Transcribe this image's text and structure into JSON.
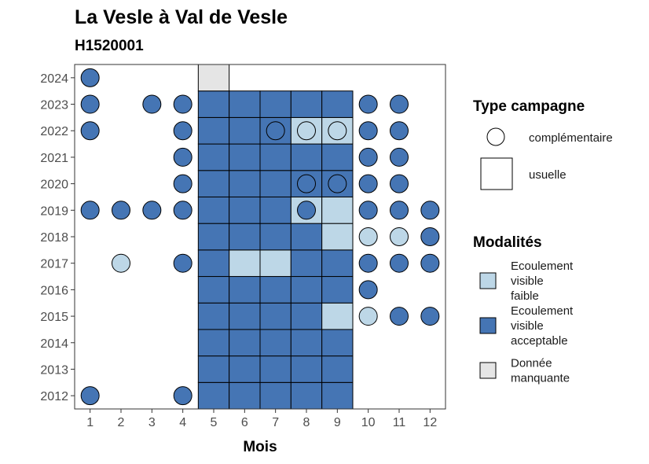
{
  "chart_data": {
    "type": "heatmap",
    "title": "La Vesle à Val de Vesle",
    "subtitle": "H1520001",
    "xlabel": "Mois",
    "ylabel": "",
    "x_ticks": [
      "1",
      "2",
      "3",
      "4",
      "5",
      "6",
      "7",
      "8",
      "9",
      "10",
      "11",
      "12"
    ],
    "y_ticks": [
      "2012",
      "2013",
      "2014",
      "2015",
      "2016",
      "2017",
      "2018",
      "2019",
      "2020",
      "2021",
      "2022",
      "2023",
      "2024"
    ],
    "xlim": [
      0.5,
      12.5
    ],
    "ylim": [
      2011.5,
      2024.5
    ],
    "grid": false,
    "legend_position": "right",
    "colors": {
      "faible": "#bdd7e7",
      "acceptable": "#4575b4",
      "manquante": "#e5e5e5"
    },
    "legend_campagne": {
      "title": "Type campagne",
      "items": [
        {
          "shape": "circle",
          "label": "complémentaire"
        },
        {
          "shape": "square",
          "label": "usuelle"
        }
      ]
    },
    "legend_modalites": {
      "title": "Modalités",
      "items": [
        {
          "key": "faible",
          "lines": [
            "Ecoulement",
            "visible",
            "faible"
          ]
        },
        {
          "key": "acceptable",
          "lines": [
            "Ecoulement",
            "visible",
            "acceptable"
          ]
        },
        {
          "key": "manquante",
          "lines": [
            "Donnée",
            "manquante"
          ]
        }
      ]
    },
    "squares": [
      {
        "year": 2012,
        "month": 5,
        "m": "acceptable"
      },
      {
        "year": 2012,
        "month": 6,
        "m": "acceptable"
      },
      {
        "year": 2012,
        "month": 7,
        "m": "acceptable"
      },
      {
        "year": 2012,
        "month": 8,
        "m": "acceptable"
      },
      {
        "year": 2012,
        "month": 9,
        "m": "acceptable"
      },
      {
        "year": 2013,
        "month": 5,
        "m": "acceptable"
      },
      {
        "year": 2013,
        "month": 6,
        "m": "acceptable"
      },
      {
        "year": 2013,
        "month": 7,
        "m": "acceptable"
      },
      {
        "year": 2013,
        "month": 8,
        "m": "acceptable"
      },
      {
        "year": 2013,
        "month": 9,
        "m": "acceptable"
      },
      {
        "year": 2014,
        "month": 5,
        "m": "acceptable"
      },
      {
        "year": 2014,
        "month": 6,
        "m": "acceptable"
      },
      {
        "year": 2014,
        "month": 7,
        "m": "acceptable"
      },
      {
        "year": 2014,
        "month": 8,
        "m": "acceptable"
      },
      {
        "year": 2014,
        "month": 9,
        "m": "acceptable"
      },
      {
        "year": 2015,
        "month": 5,
        "m": "acceptable"
      },
      {
        "year": 2015,
        "month": 6,
        "m": "acceptable"
      },
      {
        "year": 2015,
        "month": 7,
        "m": "acceptable"
      },
      {
        "year": 2015,
        "month": 8,
        "m": "acceptable"
      },
      {
        "year": 2015,
        "month": 9,
        "m": "faible"
      },
      {
        "year": 2016,
        "month": 5,
        "m": "acceptable"
      },
      {
        "year": 2016,
        "month": 6,
        "m": "acceptable"
      },
      {
        "year": 2016,
        "month": 7,
        "m": "acceptable"
      },
      {
        "year": 2016,
        "month": 8,
        "m": "acceptable"
      },
      {
        "year": 2016,
        "month": 9,
        "m": "acceptable"
      },
      {
        "year": 2017,
        "month": 5,
        "m": "acceptable"
      },
      {
        "year": 2017,
        "month": 6,
        "m": "faible"
      },
      {
        "year": 2017,
        "month": 7,
        "m": "faible"
      },
      {
        "year": 2017,
        "month": 8,
        "m": "acceptable"
      },
      {
        "year": 2017,
        "month": 9,
        "m": "acceptable"
      },
      {
        "year": 2018,
        "month": 5,
        "m": "acceptable"
      },
      {
        "year": 2018,
        "month": 6,
        "m": "acceptable"
      },
      {
        "year": 2018,
        "month": 7,
        "m": "acceptable"
      },
      {
        "year": 2018,
        "month": 8,
        "m": "acceptable"
      },
      {
        "year": 2018,
        "month": 9,
        "m": "faible"
      },
      {
        "year": 2019,
        "month": 5,
        "m": "acceptable"
      },
      {
        "year": 2019,
        "month": 6,
        "m": "acceptable"
      },
      {
        "year": 2019,
        "month": 7,
        "m": "acceptable"
      },
      {
        "year": 2019,
        "month": 8,
        "m": "faible"
      },
      {
        "year": 2019,
        "month": 9,
        "m": "faible"
      },
      {
        "year": 2020,
        "month": 5,
        "m": "acceptable"
      },
      {
        "year": 2020,
        "month": 6,
        "m": "acceptable"
      },
      {
        "year": 2020,
        "month": 7,
        "m": "acceptable"
      },
      {
        "year": 2020,
        "month": 8,
        "m": "acceptable"
      },
      {
        "year": 2020,
        "month": 9,
        "m": "acceptable"
      },
      {
        "year": 2021,
        "month": 5,
        "m": "acceptable"
      },
      {
        "year": 2021,
        "month": 6,
        "m": "acceptable"
      },
      {
        "year": 2021,
        "month": 7,
        "m": "acceptable"
      },
      {
        "year": 2021,
        "month": 8,
        "m": "acceptable"
      },
      {
        "year": 2021,
        "month": 9,
        "m": "acceptable"
      },
      {
        "year": 2022,
        "month": 5,
        "m": "acceptable"
      },
      {
        "year": 2022,
        "month": 6,
        "m": "acceptable"
      },
      {
        "year": 2022,
        "month": 7,
        "m": "acceptable"
      },
      {
        "year": 2022,
        "month": 8,
        "m": "faible"
      },
      {
        "year": 2022,
        "month": 9,
        "m": "faible"
      },
      {
        "year": 2023,
        "month": 5,
        "m": "acceptable"
      },
      {
        "year": 2023,
        "month": 6,
        "m": "acceptable"
      },
      {
        "year": 2023,
        "month": 7,
        "m": "acceptable"
      },
      {
        "year": 2023,
        "month": 8,
        "m": "acceptable"
      },
      {
        "year": 2023,
        "month": 9,
        "m": "acceptable"
      },
      {
        "year": 2024,
        "month": 5,
        "m": "manquante"
      }
    ],
    "circles": [
      {
        "year": 2012,
        "month": 1,
        "m": "acceptable"
      },
      {
        "year": 2012,
        "month": 4,
        "m": "acceptable"
      },
      {
        "year": 2015,
        "month": 10,
        "m": "faible"
      },
      {
        "year": 2015,
        "month": 11,
        "m": "acceptable"
      },
      {
        "year": 2015,
        "month": 12,
        "m": "acceptable"
      },
      {
        "year": 2016,
        "month": 10,
        "m": "acceptable"
      },
      {
        "year": 2017,
        "month": 2,
        "m": "faible"
      },
      {
        "year": 2017,
        "month": 4,
        "m": "acceptable"
      },
      {
        "year": 2017,
        "month": 10,
        "m": "acceptable"
      },
      {
        "year": 2017,
        "month": 11,
        "m": "acceptable"
      },
      {
        "year": 2017,
        "month": 12,
        "m": "acceptable"
      },
      {
        "year": 2018,
        "month": 10,
        "m": "faible"
      },
      {
        "year": 2018,
        "month": 11,
        "m": "faible"
      },
      {
        "year": 2018,
        "month": 12,
        "m": "acceptable"
      },
      {
        "year": 2019,
        "month": 1,
        "m": "acceptable"
      },
      {
        "year": 2019,
        "month": 2,
        "m": "acceptable"
      },
      {
        "year": 2019,
        "month": 3,
        "m": "acceptable"
      },
      {
        "year": 2019,
        "month": 4,
        "m": "acceptable"
      },
      {
        "year": 2019,
        "month": 8,
        "m": "acceptable"
      },
      {
        "year": 2019,
        "month": 10,
        "m": "acceptable"
      },
      {
        "year": 2019,
        "month": 11,
        "m": "acceptable"
      },
      {
        "year": 2019,
        "month": 12,
        "m": "acceptable"
      },
      {
        "year": 2020,
        "month": 4,
        "m": "acceptable"
      },
      {
        "year": 2020,
        "month": 8,
        "m": "acceptable"
      },
      {
        "year": 2020,
        "month": 9,
        "m": "acceptable"
      },
      {
        "year": 2020,
        "month": 10,
        "m": "acceptable"
      },
      {
        "year": 2020,
        "month": 11,
        "m": "acceptable"
      },
      {
        "year": 2021,
        "month": 4,
        "m": "acceptable"
      },
      {
        "year": 2021,
        "month": 10,
        "m": "acceptable"
      },
      {
        "year": 2021,
        "month": 11,
        "m": "acceptable"
      },
      {
        "year": 2022,
        "month": 1,
        "m": "acceptable"
      },
      {
        "year": 2022,
        "month": 4,
        "m": "acceptable"
      },
      {
        "year": 2022,
        "month": 7,
        "m": "acceptable"
      },
      {
        "year": 2022,
        "month": 8,
        "m": "faible"
      },
      {
        "year": 2022,
        "month": 9,
        "m": "faible"
      },
      {
        "year": 2022,
        "month": 10,
        "m": "acceptable"
      },
      {
        "year": 2022,
        "month": 11,
        "m": "acceptable"
      },
      {
        "year": 2023,
        "month": 1,
        "m": "acceptable"
      },
      {
        "year": 2023,
        "month": 3,
        "m": "acceptable"
      },
      {
        "year": 2023,
        "month": 4,
        "m": "acceptable"
      },
      {
        "year": 2023,
        "month": 10,
        "m": "acceptable"
      },
      {
        "year": 2023,
        "month": 11,
        "m": "acceptable"
      },
      {
        "year": 2024,
        "month": 1,
        "m": "acceptable"
      }
    ]
  }
}
